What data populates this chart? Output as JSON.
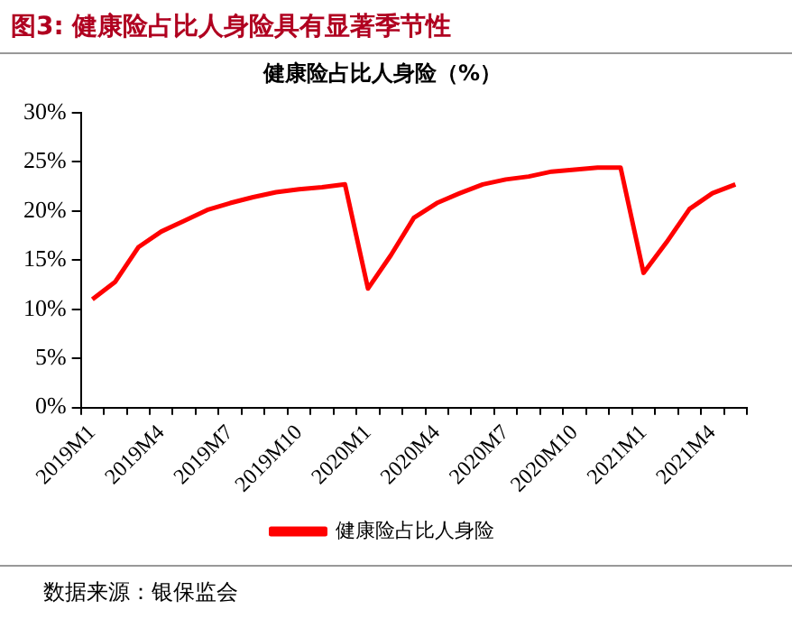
{
  "chart_data": {
    "type": "line",
    "title": "健康险占比人身险（%）",
    "annotations": [
      "图3:  健康险占比人身险具有显著季节性",
      "数据来源：银保监会"
    ],
    "categories": [
      "2019M1",
      null,
      null,
      "2019M4",
      null,
      null,
      "2019M7",
      null,
      null,
      "2019M10",
      null,
      null,
      "2020M1",
      null,
      null,
      "2020M4",
      null,
      null,
      "2020M7",
      null,
      null,
      "2020M10",
      null,
      null,
      "2021M1",
      null,
      null,
      "2021M4",
      null
    ],
    "series": [
      {
        "name": "健康险占比人身险",
        "color": "#ff0000",
        "values": [
          11.0,
          12.8,
          16.3,
          17.9,
          19.0,
          20.1,
          20.8,
          21.4,
          21.9,
          22.2,
          22.4,
          22.7,
          12.1,
          15.5,
          19.3,
          20.8,
          21.8,
          22.7,
          23.2,
          23.5,
          24.0,
          24.2,
          24.4,
          24.4,
          13.7,
          16.8,
          20.2,
          21.8,
          22.7
        ]
      }
    ],
    "ylim": [
      0,
      30
    ],
    "yticks": [
      {
        "value": 0,
        "label": "0%"
      },
      {
        "value": 5,
        "label": "5%"
      },
      {
        "value": 10,
        "label": "10%"
      },
      {
        "value": 15,
        "label": "15%"
      },
      {
        "value": 20,
        "label": "20%"
      },
      {
        "value": 25,
        "label": "25%"
      },
      {
        "value": 30,
        "label": "30%"
      }
    ],
    "grid": false,
    "legend": "bottom",
    "marker": "none",
    "line_style": "solid"
  }
}
